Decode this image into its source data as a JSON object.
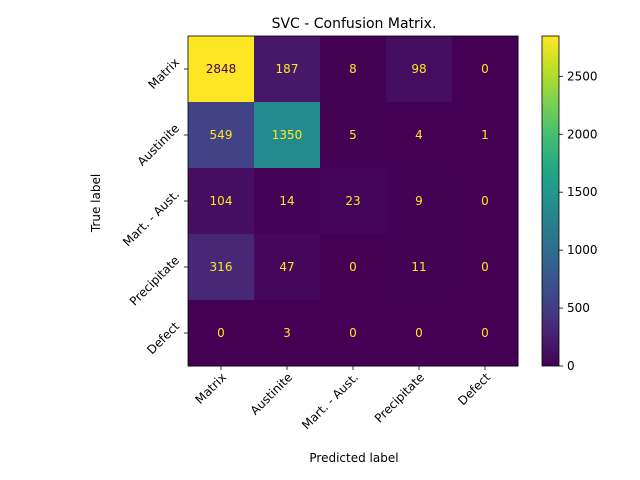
{
  "chart_data": {
    "type": "heatmap",
    "title": "SVC - Confusion Matrix.",
    "xlabel": "Predicted label",
    "ylabel": "True label",
    "x_categories": [
      "Matrix",
      "Austinite",
      "Mart. - Aust.",
      "Precipitate",
      "Defect"
    ],
    "y_categories": [
      "Matrix",
      "Austinite",
      "Mart. - Aust.",
      "Precipitate",
      "Defect"
    ],
    "values": [
      [
        2848,
        187,
        8,
        98,
        0
      ],
      [
        549,
        1350,
        5,
        4,
        1
      ],
      [
        104,
        14,
        23,
        9,
        0
      ],
      [
        316,
        47,
        0,
        11,
        0
      ],
      [
        0,
        3,
        0,
        0,
        0
      ]
    ],
    "colormap": "viridis",
    "color_range": [
      0,
      2848
    ],
    "colorbar_ticks": [
      0,
      500,
      1000,
      1500,
      2000,
      2500
    ],
    "text_color_dark_cells": "#fde725",
    "text_color_light_cells": "#440154",
    "grid": false
  }
}
